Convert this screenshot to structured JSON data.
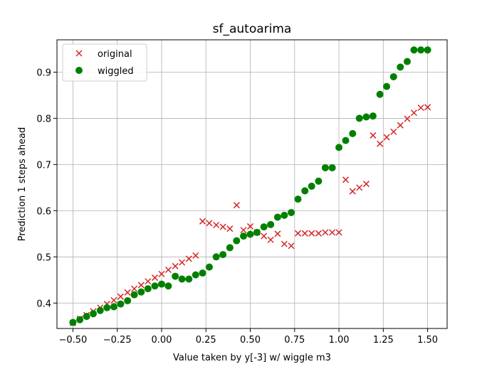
{
  "chart_data": {
    "type": "scatter",
    "title": "sf_autoarima",
    "xlabel": "Value taken by y[-3] w/ wiggle m3",
    "ylabel": "Prediction 1 steps ahead",
    "xlim": [
      -0.59,
      1.61
    ],
    "ylim": [
      0.345,
      0.97
    ],
    "xticks": [
      -0.5,
      -0.25,
      0.0,
      0.25,
      0.5,
      0.75,
      1.0,
      1.25,
      1.5
    ],
    "xtick_labels": [
      "−0.50",
      "−0.25",
      "0.00",
      "0.25",
      "0.50",
      "0.75",
      "1.00",
      "1.25",
      "1.50"
    ],
    "yticks": [
      0.4,
      0.5,
      0.6,
      0.7,
      0.8,
      0.9
    ],
    "ytick_labels": [
      "0.4",
      "0.5",
      "0.6",
      "0.7",
      "0.8",
      "0.9"
    ],
    "grid": true,
    "legend_position": "upper-left",
    "series": [
      {
        "name": "original",
        "marker": "x",
        "color": "#d62728",
        "x": [
          -0.5,
          -0.461,
          -0.423,
          -0.385,
          -0.346,
          -0.308,
          -0.269,
          -0.231,
          -0.192,
          -0.154,
          -0.115,
          -0.077,
          -0.038,
          0.0,
          0.038,
          0.077,
          0.115,
          0.154,
          0.192,
          0.231,
          0.269,
          0.308,
          0.346,
          0.385,
          0.423,
          0.462,
          0.5,
          0.538,
          0.577,
          0.615,
          0.654,
          0.692,
          0.731,
          0.769,
          0.808,
          0.846,
          0.885,
          0.923,
          0.962,
          1.0,
          1.038,
          1.077,
          1.115,
          1.154,
          1.192,
          1.231,
          1.269,
          1.308,
          1.346,
          1.385,
          1.423,
          1.462,
          1.5
        ],
        "y": [
          0.357,
          0.366,
          0.374,
          0.382,
          0.39,
          0.398,
          0.406,
          0.414,
          0.423,
          0.431,
          0.439,
          0.447,
          0.455,
          0.463,
          0.472,
          0.48,
          0.488,
          0.496,
          0.503,
          0.577,
          0.573,
          0.569,
          0.565,
          0.561,
          0.612,
          0.558,
          0.566,
          0.553,
          0.545,
          0.537,
          0.55,
          0.528,
          0.524,
          0.551,
          0.551,
          0.551,
          0.551,
          0.553,
          0.553,
          0.553,
          0.667,
          0.642,
          0.65,
          0.658,
          0.763,
          0.745,
          0.759,
          0.771,
          0.785,
          0.799,
          0.812,
          0.823,
          0.824
        ]
      },
      {
        "name": "wiggled",
        "marker": "o",
        "color": "#008000",
        "x": [
          -0.5,
          -0.461,
          -0.423,
          -0.385,
          -0.346,
          -0.308,
          -0.269,
          -0.231,
          -0.192,
          -0.154,
          -0.115,
          -0.077,
          -0.038,
          0.0,
          0.038,
          0.077,
          0.115,
          0.154,
          0.192,
          0.231,
          0.269,
          0.308,
          0.346,
          0.385,
          0.423,
          0.462,
          0.5,
          0.538,
          0.577,
          0.615,
          0.654,
          0.692,
          0.731,
          0.769,
          0.808,
          0.846,
          0.885,
          0.923,
          0.962,
          1.0,
          1.038,
          1.077,
          1.115,
          1.154,
          1.192,
          1.231,
          1.269,
          1.308,
          1.346,
          1.385,
          1.423,
          1.462,
          1.5
        ],
        "y": [
          0.358,
          0.364,
          0.371,
          0.377,
          0.384,
          0.39,
          0.392,
          0.398,
          0.405,
          0.418,
          0.424,
          0.431,
          0.437,
          0.441,
          0.437,
          0.458,
          0.452,
          0.452,
          0.461,
          0.465,
          0.478,
          0.5,
          0.505,
          0.52,
          0.535,
          0.545,
          0.549,
          0.553,
          0.565,
          0.57,
          0.586,
          0.59,
          0.596,
          0.625,
          0.643,
          0.653,
          0.664,
          0.693,
          0.693,
          0.737,
          0.752,
          0.767,
          0.8,
          0.803,
          0.805,
          0.852,
          0.869,
          0.89,
          0.911,
          0.923,
          0.948,
          0.948,
          0.948
        ]
      }
    ]
  }
}
